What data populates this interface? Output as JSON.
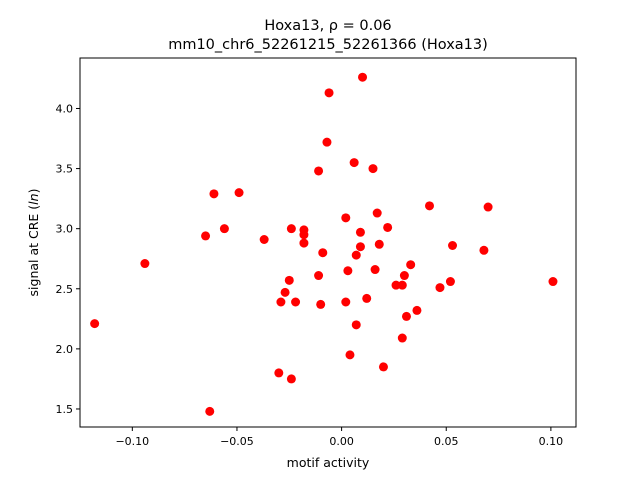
{
  "chart_data": {
    "type": "scatter",
    "title_line1": "Hoxa13, ρ = 0.06",
    "title_line2": "mm10_chr6_52261215_52261366 (Hoxa13)",
    "xlabel": "motif activity",
    "ylabel": "signal at CRE (ln)",
    "xlim": [
      -0.125,
      0.112
    ],
    "ylim": [
      1.35,
      4.42
    ],
    "xticks": [
      -0.1,
      -0.05,
      0.0,
      0.05,
      0.1
    ],
    "xtick_labels": [
      "−0.10",
      "−0.05",
      "0.00",
      "0.05",
      "0.10"
    ],
    "yticks": [
      1.5,
      2.0,
      2.5,
      3.0,
      3.5,
      4.0
    ],
    "ytick_labels": [
      "1.5",
      "2.0",
      "2.5",
      "3.0",
      "3.5",
      "4.0"
    ],
    "grid": false,
    "marker_color": "#ff0000",
    "points": [
      {
        "x": -0.118,
        "y": 2.21
      },
      {
        "x": -0.094,
        "y": 2.71
      },
      {
        "x": -0.065,
        "y": 2.94
      },
      {
        "x": -0.063,
        "y": 1.48
      },
      {
        "x": -0.061,
        "y": 3.29
      },
      {
        "x": -0.056,
        "y": 3.0
      },
      {
        "x": -0.049,
        "y": 3.3
      },
      {
        "x": -0.037,
        "y": 2.91
      },
      {
        "x": -0.03,
        "y": 1.8
      },
      {
        "x": -0.029,
        "y": 2.39
      },
      {
        "x": -0.027,
        "y": 2.47
      },
      {
        "x": -0.025,
        "y": 2.57
      },
      {
        "x": -0.024,
        "y": 3.0
      },
      {
        "x": -0.024,
        "y": 1.75
      },
      {
        "x": -0.022,
        "y": 2.39
      },
      {
        "x": -0.018,
        "y": 2.99
      },
      {
        "x": -0.018,
        "y": 2.95
      },
      {
        "x": -0.018,
        "y": 2.88
      },
      {
        "x": -0.011,
        "y": 3.48
      },
      {
        "x": -0.011,
        "y": 2.61
      },
      {
        "x": -0.01,
        "y": 2.37
      },
      {
        "x": -0.009,
        "y": 2.8
      },
      {
        "x": -0.007,
        "y": 3.72
      },
      {
        "x": -0.006,
        "y": 4.13
      },
      {
        "x": 0.002,
        "y": 3.09
      },
      {
        "x": 0.002,
        "y": 2.39
      },
      {
        "x": 0.003,
        "y": 2.65
      },
      {
        "x": 0.004,
        "y": 1.95
      },
      {
        "x": 0.006,
        "y": 3.55
      },
      {
        "x": 0.007,
        "y": 2.2
      },
      {
        "x": 0.007,
        "y": 2.78
      },
      {
        "x": 0.009,
        "y": 2.97
      },
      {
        "x": 0.009,
        "y": 2.85
      },
      {
        "x": 0.01,
        "y": 4.26
      },
      {
        "x": 0.012,
        "y": 2.42
      },
      {
        "x": 0.015,
        "y": 3.5
      },
      {
        "x": 0.016,
        "y": 2.66
      },
      {
        "x": 0.017,
        "y": 3.13
      },
      {
        "x": 0.018,
        "y": 2.87
      },
      {
        "x": 0.02,
        "y": 1.85
      },
      {
        "x": 0.022,
        "y": 3.01
      },
      {
        "x": 0.026,
        "y": 2.53
      },
      {
        "x": 0.029,
        "y": 2.53
      },
      {
        "x": 0.029,
        "y": 2.09
      },
      {
        "x": 0.03,
        "y": 2.61
      },
      {
        "x": 0.031,
        "y": 2.27
      },
      {
        "x": 0.033,
        "y": 2.7
      },
      {
        "x": 0.036,
        "y": 2.32
      },
      {
        "x": 0.042,
        "y": 3.19
      },
      {
        "x": 0.047,
        "y": 2.51
      },
      {
        "x": 0.052,
        "y": 2.56
      },
      {
        "x": 0.053,
        "y": 2.86
      },
      {
        "x": 0.068,
        "y": 2.82
      },
      {
        "x": 0.07,
        "y": 3.18
      },
      {
        "x": 0.101,
        "y": 2.56
      }
    ]
  }
}
